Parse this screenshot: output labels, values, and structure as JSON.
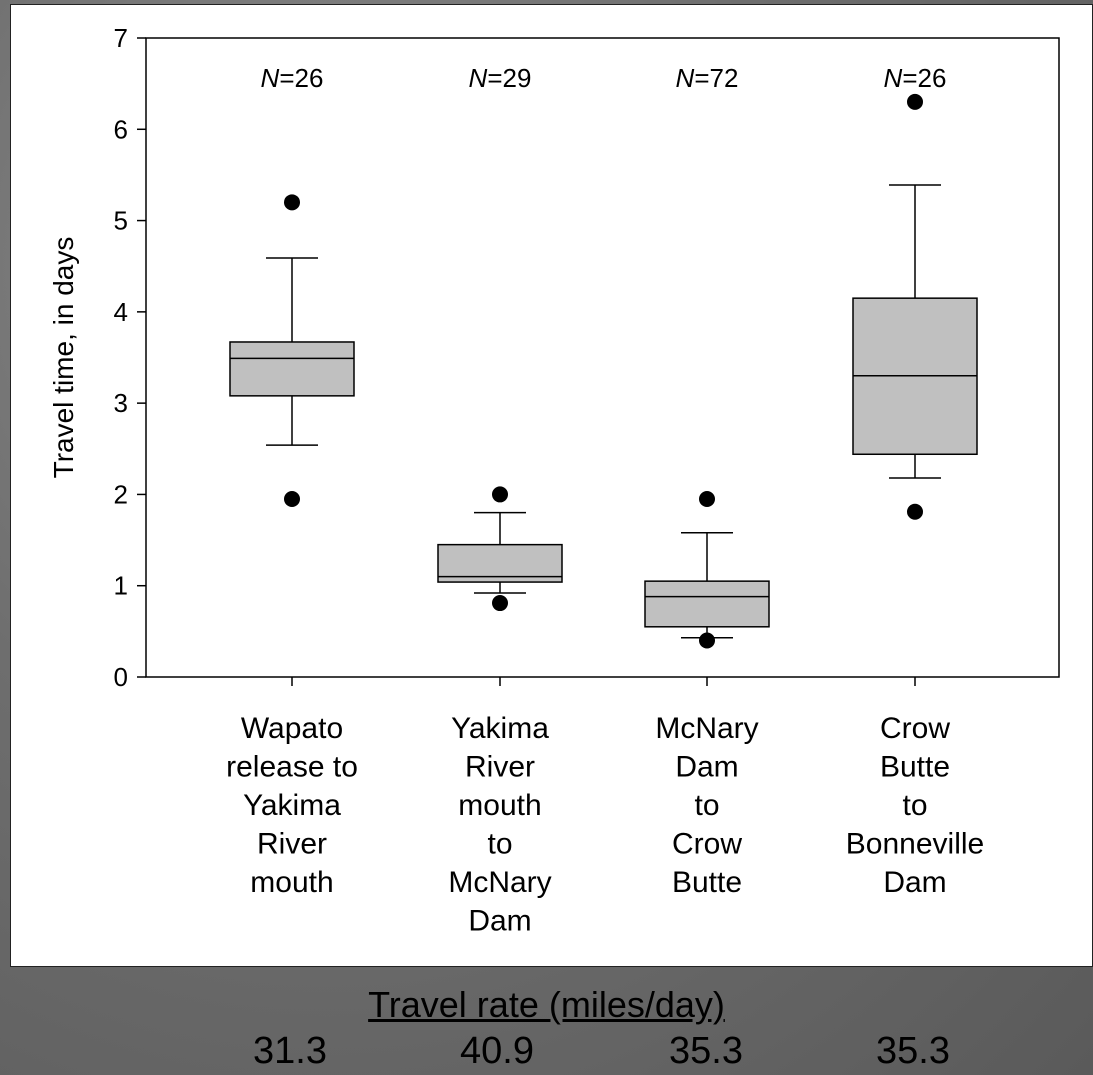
{
  "chart_data": {
    "type": "box",
    "ylabel": "Travel time, in days",
    "ylim": [
      0,
      7
    ],
    "yticks": [
      0,
      1,
      2,
      3,
      4,
      5,
      6,
      7
    ],
    "categories": [
      [
        "Wapato",
        "release to",
        "Yakima",
        "River",
        "mouth"
      ],
      [
        "Yakima",
        "River",
        "mouth",
        "to",
        "McNary",
        "Dam"
      ],
      [
        "McNary",
        "Dam",
        "to",
        "Crow",
        "Butte"
      ],
      [
        "Crow",
        "Butte",
        "to",
        "Bonneville",
        "Dam"
      ]
    ],
    "n_labels": [
      {
        "prefix": "N",
        "value": "=26"
      },
      {
        "prefix": "N",
        "value": "=29"
      },
      {
        "prefix": "N",
        "value": "=72"
      },
      {
        "prefix": "N",
        "value": "=26"
      }
    ],
    "boxes": [
      {
        "whisker_low": 2.54,
        "q1": 3.08,
        "median": 3.49,
        "q3": 3.67,
        "whisker_high": 4.59,
        "outliers": [
          1.95,
          5.2
        ]
      },
      {
        "whisker_low": 0.92,
        "q1": 1.04,
        "median": 1.1,
        "q3": 1.45,
        "whisker_high": 1.8,
        "outliers": [
          0.81,
          2.0
        ]
      },
      {
        "whisker_low": 0.43,
        "q1": 0.55,
        "median": 0.88,
        "q3": 1.05,
        "whisker_high": 1.58,
        "outliers": [
          0.4,
          1.95
        ]
      },
      {
        "whisker_low": 2.18,
        "q1": 2.44,
        "median": 3.3,
        "q3": 4.15,
        "whisker_high": 5.39,
        "outliers": [
          1.81,
          6.3
        ]
      }
    ],
    "grid": false,
    "box_fill": "#c0c0c0"
  },
  "travel_rate": {
    "title": "Travel rate (miles/day)",
    "values": [
      "31.3",
      "40.9",
      "35.3",
      "35.3"
    ]
  }
}
